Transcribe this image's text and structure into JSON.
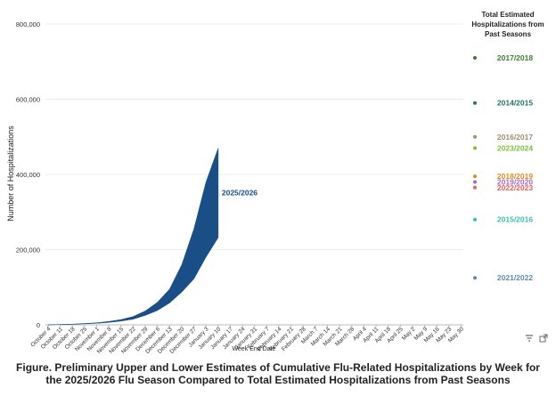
{
  "chart_data": {
    "type": "area",
    "ylabel": "Number of Hospitalizations",
    "xlabel": "Week End Date",
    "ylim": [
      0,
      800000
    ],
    "yticks": [
      0,
      200000,
      400000,
      600000,
      800000
    ],
    "ytick_labels": [
      "0",
      "200,000",
      "400,000",
      "600,000",
      "800,000"
    ],
    "x": [
      "October 4",
      "October 11",
      "October 18",
      "October 25",
      "November 1",
      "November 8",
      "November 15",
      "November 22",
      "November 29",
      "December 6",
      "December 13",
      "December 20",
      "December 27",
      "January 3",
      "January 10",
      "January 17",
      "January 24",
      "January 31",
      "February 7",
      "February 14",
      "February 21",
      "February 28",
      "March 7",
      "March 14",
      "March 21",
      "March 28",
      "April 4",
      "April 11",
      "April 18",
      "April 25",
      "May 2",
      "May 9",
      "May 16",
      "May 23",
      "May 30"
    ],
    "series": [
      {
        "name": "2025/2026",
        "color": "#1a4e86",
        "upper": [
          0,
          1000,
          2000,
          3500,
          5500,
          9000,
          14000,
          22000,
          37000,
          60000,
          95000,
          160000,
          255000,
          380000,
          470000
        ],
        "lower": [
          0,
          700,
          1500,
          2500,
          4000,
          6500,
          10000,
          15000,
          25000,
          38000,
          58000,
          87000,
          122000,
          180000,
          232000
        ]
      }
    ],
    "past_seasons": {
      "title": [
        "Total Estimated",
        "Hospitalizations from",
        "Past Seasons"
      ],
      "items": [
        {
          "name": "2017/2018",
          "value": 710000,
          "color": "#3d7e2a"
        },
        {
          "name": "2014/2015",
          "value": 590000,
          "color": "#1f7567"
        },
        {
          "name": "2016/2017",
          "value": 500000,
          "color": "#a58a70"
        },
        {
          "name": "2023/2024",
          "value": 470000,
          "color": "#7cbf3a"
        },
        {
          "name": "2018/2019",
          "value": 395000,
          "color": "#e48a1a"
        },
        {
          "name": "2019/2020",
          "value": 380000,
          "color": "#a06cc8"
        },
        {
          "name": "2022/2023",
          "value": 365000,
          "color": "#e8605a"
        },
        {
          "name": "2015/2016",
          "value": 280000,
          "color": "#3cbfa8"
        },
        {
          "name": "2021/2022",
          "value": 125000,
          "color": "#5c87b8"
        }
      ]
    }
  },
  "caption": {
    "line1": "Figure. Preliminary Upper and Lower Estimates of Cumulative Flu-Related Hospitalizations by Week for",
    "line2": "the 2025/2026 Flu Season Compared to Total Estimated Hospitalizations from Past Seasons"
  },
  "toolbar": {
    "filter_icon": "filter-icon",
    "expand_icon": "expand-icon"
  }
}
